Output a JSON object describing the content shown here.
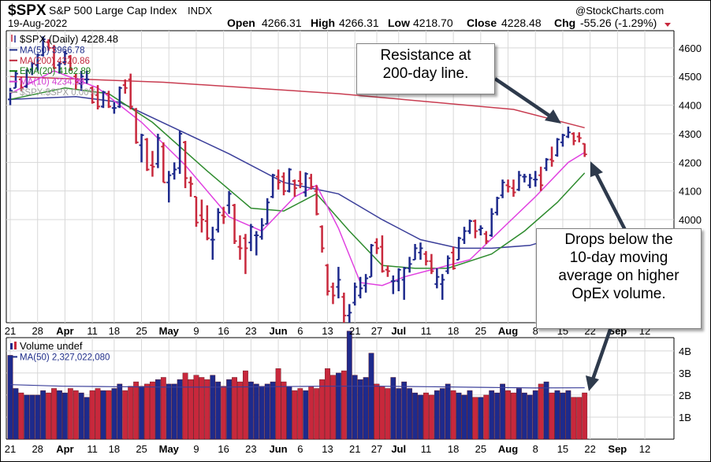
{
  "header": {
    "symbol": "$SPX",
    "name": "S&P 500 Large Cap Index",
    "exchange": "INDX",
    "date": "19-Aug-2022",
    "watermark": "@StockCharts.com",
    "open_label": "Open",
    "open": "4266.31",
    "high_label": "High",
    "high": "4266.31",
    "low_label": "Low",
    "low": "4218.70",
    "close_label": "Close",
    "close": "4228.48",
    "chg_label": "Chg",
    "chg": "-55.26 (-1.29%)"
  },
  "legend": [
    {
      "text": "$SPX (Daily) 4228.48",
      "color": "#000000",
      "swatch": "candle"
    },
    {
      "text": "MA(50) 3966.78",
      "color": "#1f2d8a",
      "swatch": "line"
    },
    {
      "text": "MA(200) 4320.86",
      "color": "#c0283c",
      "swatch": "line"
    },
    {
      "text": "EMA(20) 4162.89",
      "color": "#137a13",
      "swatch": "line"
    },
    {
      "text": "MA(10) 4234.88",
      "color": "#d03ad0",
      "swatch": "line"
    },
    {
      "text": "$SPX:$SPX 0.00%",
      "color": "#a0a0a0",
      "swatch": "line"
    }
  ],
  "volume_legend": [
    {
      "text": "Volume undef",
      "color": "#000000",
      "swatch": "bars"
    },
    {
      "text": "MA(50) 2,327,022,080",
      "color": "#1f2d8a",
      "swatch": "line"
    }
  ],
  "annotations": {
    "resistance": [
      "Resistance at",
      "200-day line."
    ],
    "drops": [
      "Drops below the",
      "10-day moving",
      "average on higher",
      "OpEx volume."
    ]
  },
  "colors": {
    "up": "#1e2a8c",
    "down": "#c8283c",
    "ma50": "#3b3f9a",
    "ma200": "#c83c50",
    "ema20": "#2e8b2e",
    "ma10": "#e040e0",
    "grid": "#d8d8d8",
    "arrow": "#2e3a4c"
  },
  "x_axis_labels": [
    {
      "text": "21",
      "bold": false
    },
    {
      "text": "28",
      "bold": false
    },
    {
      "text": "Apr",
      "bold": true
    },
    {
      "text": "11",
      "bold": false
    },
    {
      "text": "18",
      "bold": false
    },
    {
      "text": "25",
      "bold": false
    },
    {
      "text": "May",
      "bold": true
    },
    {
      "text": "9",
      "bold": false
    },
    {
      "text": "16",
      "bold": false
    },
    {
      "text": "23",
      "bold": false
    },
    {
      "text": "Jun",
      "bold": true
    },
    {
      "text": "6",
      "bold": false
    },
    {
      "text": "13",
      "bold": false
    },
    {
      "text": "21",
      "bold": false
    },
    {
      "text": "27",
      "bold": false
    },
    {
      "text": "Jul",
      "bold": true
    },
    {
      "text": "11",
      "bold": false
    },
    {
      "text": "18",
      "bold": false
    },
    {
      "text": "25",
      "bold": false
    },
    {
      "text": "Aug",
      "bold": true
    },
    {
      "text": "8",
      "bold": false
    },
    {
      "text": "15",
      "bold": false
    },
    {
      "text": "22",
      "bold": false
    },
    {
      "text": "Sep",
      "bold": true
    },
    {
      "text": "12",
      "bold": false
    }
  ],
  "chart_data": [
    {
      "type": "candlestick",
      "title": "$SPX S&P 500 Large Cap Index INDX",
      "y_ticks": [
        "4600",
        "4500",
        "4400",
        "4300",
        "4200",
        "4100",
        "4000"
      ],
      "ylim": [
        3640,
        4660
      ],
      "log_scale": false,
      "grid": true,
      "legend_position": "top-left",
      "dates": [
        "Mar 21",
        "Mar 22",
        "Mar 23",
        "Mar 24",
        "Mar 25",
        "Mar 28",
        "Mar 29",
        "Mar 30",
        "Mar 31",
        "Apr 1",
        "Apr 4",
        "Apr 5",
        "Apr 6",
        "Apr 7",
        "Apr 8",
        "Apr 11",
        "Apr 12",
        "Apr 13",
        "Apr 14",
        "Apr 18",
        "Apr 19",
        "Apr 20",
        "Apr 21",
        "Apr 22",
        "Apr 25",
        "Apr 26",
        "Apr 27",
        "Apr 28",
        "Apr 29",
        "May 2",
        "May 3",
        "May 4",
        "May 5",
        "May 6",
        "May 9",
        "May 10",
        "May 11",
        "May 12",
        "May 13",
        "May 16",
        "May 17",
        "May 18",
        "May 19",
        "May 20",
        "May 23",
        "May 24",
        "May 25",
        "May 26",
        "May 27",
        "May 31",
        "Jun 1",
        "Jun 2",
        "Jun 3",
        "Jun 6",
        "Jun 7",
        "Jun 8",
        "Jun 9",
        "Jun 10",
        "Jun 13",
        "Jun 14",
        "Jun 15",
        "Jun 16",
        "Jun 17",
        "Jun 21",
        "Jun 22",
        "Jun 23",
        "Jun 24",
        "Jun 27",
        "Jun 28",
        "Jun 29",
        "Jun 30",
        "Jul 1",
        "Jul 5",
        "Jul 6",
        "Jul 7",
        "Jul 8",
        "Jul 11",
        "Jul 12",
        "Jul 13",
        "Jul 14",
        "Jul 15",
        "Jul 18",
        "Jul 19",
        "Jul 20",
        "Jul 21",
        "Jul 22",
        "Jul 25",
        "Jul 26",
        "Jul 27",
        "Jul 28",
        "Jul 29",
        "Aug 1",
        "Aug 2",
        "Aug 3",
        "Aug 4",
        "Aug 5",
        "Aug 8",
        "Aug 9",
        "Aug 10",
        "Aug 11",
        "Aug 12",
        "Aug 15",
        "Aug 16",
        "Aug 17",
        "Aug 18",
        "Aug 19"
      ],
      "ohlc": [
        [
          4420,
          4450,
          4400,
          4460
        ],
        [
          4460,
          4510,
          4460,
          4520
        ],
        [
          4490,
          4460,
          4450,
          4500
        ],
        [
          4465,
          4520,
          4460,
          4525
        ],
        [
          4525,
          4545,
          4505,
          4550
        ],
        [
          4540,
          4575,
          4520,
          4580
        ],
        [
          4575,
          4630,
          4570,
          4640
        ],
        [
          4620,
          4600,
          4590,
          4630
        ],
        [
          4600,
          4530,
          4525,
          4610
        ],
        [
          4540,
          4545,
          4510,
          4550
        ],
        [
          4550,
          4580,
          4540,
          4590
        ],
        [
          4570,
          4525,
          4520,
          4575
        ],
        [
          4500,
          4480,
          4455,
          4510
        ],
        [
          4475,
          4500,
          4450,
          4520
        ],
        [
          4490,
          4490,
          4475,
          4520
        ],
        [
          4460,
          4410,
          4405,
          4465
        ],
        [
          4435,
          4395,
          4385,
          4470
        ],
        [
          4395,
          4445,
          4390,
          4450
        ],
        [
          4440,
          4395,
          4390,
          4450
        ],
        [
          4390,
          4390,
          4370,
          4410
        ],
        [
          4395,
          4460,
          4390,
          4465
        ],
        [
          4470,
          4460,
          4440,
          4490
        ],
        [
          4490,
          4395,
          4385,
          4510
        ],
        [
          4385,
          4270,
          4265,
          4390
        ],
        [
          4260,
          4295,
          4200,
          4300
        ],
        [
          4280,
          4175,
          4170,
          4285
        ],
        [
          4190,
          4185,
          4150,
          4240
        ],
        [
          4195,
          4285,
          4180,
          4300
        ],
        [
          4255,
          4130,
          4130,
          4270
        ],
        [
          4130,
          4155,
          4060,
          4170
        ],
        [
          4160,
          4175,
          4140,
          4200
        ],
        [
          4180,
          4300,
          4160,
          4310
        ],
        [
          4270,
          4145,
          4110,
          4275
        ],
        [
          4130,
          4125,
          4080,
          4150
        ],
        [
          4080,
          3990,
          3975,
          4080
        ],
        [
          4015,
          4000,
          3955,
          4070
        ],
        [
          3995,
          3935,
          3928,
          4050
        ],
        [
          3930,
          3930,
          3860,
          3975
        ],
        [
          3965,
          4025,
          3955,
          4040
        ],
        [
          4015,
          4010,
          3985,
          4045
        ],
        [
          4050,
          4090,
          4020,
          4100
        ],
        [
          4050,
          3925,
          3915,
          4055
        ],
        [
          3905,
          3900,
          3860,
          3945
        ],
        [
          3935,
          3900,
          3810,
          3950
        ],
        [
          3920,
          3975,
          3890,
          3985
        ],
        [
          3945,
          3945,
          3875,
          3960
        ],
        [
          3940,
          3980,
          3930,
          4005
        ],
        [
          3985,
          4060,
          3985,
          4075
        ],
        [
          4080,
          4155,
          4075,
          4160
        ],
        [
          4150,
          4130,
          4105,
          4175
        ],
        [
          4150,
          4100,
          4085,
          4165
        ],
        [
          4100,
          4175,
          4095,
          4180
        ],
        [
          4135,
          4110,
          4080,
          4140
        ],
        [
          4135,
          4125,
          4110,
          4170
        ],
        [
          4095,
          4160,
          4080,
          4165
        ],
        [
          4145,
          4115,
          4105,
          4160
        ],
        [
          4100,
          4020,
          4015,
          4120
        ],
        [
          3975,
          3900,
          3885,
          3980
        ],
        [
          3840,
          3750,
          3735,
          3845
        ],
        [
          3765,
          3735,
          3705,
          3780
        ],
        [
          3765,
          3790,
          3725,
          3835
        ],
        [
          3730,
          3665,
          3640,
          3745
        ],
        [
          3665,
          3675,
          3640,
          3705
        ],
        [
          3710,
          3765,
          3700,
          3780
        ],
        [
          3735,
          3760,
          3725,
          3800
        ],
        [
          3770,
          3795,
          3745,
          3810
        ],
        [
          3800,
          3910,
          3800,
          3915
        ],
        [
          3920,
          3900,
          3880,
          3935
        ],
        [
          3905,
          3820,
          3815,
          3945
        ],
        [
          3825,
          3820,
          3800,
          3840
        ],
        [
          3785,
          3785,
          3740,
          3805
        ],
        [
          3785,
          3825,
          3750,
          3830
        ],
        [
          3790,
          3830,
          3720,
          3835
        ],
        [
          3830,
          3845,
          3815,
          3870
        ],
        [
          3860,
          3900,
          3860,
          3915
        ],
        [
          3885,
          3900,
          3860,
          3920
        ],
        [
          3880,
          3855,
          3840,
          3890
        ],
        [
          3855,
          3820,
          3810,
          3880
        ],
        [
          3775,
          3800,
          3760,
          3830
        ],
        [
          3775,
          3790,
          3720,
          3810
        ],
        [
          3820,
          3865,
          3810,
          3875
        ],
        [
          3885,
          3830,
          3825,
          3905
        ],
        [
          3860,
          3935,
          3860,
          3940
        ],
        [
          3930,
          3960,
          3915,
          3975
        ],
        [
          3960,
          3995,
          3950,
          4000
        ],
        [
          3995,
          3960,
          3935,
          4000
        ],
        [
          3965,
          3970,
          3945,
          3980
        ],
        [
          3950,
          3925,
          3915,
          3960
        ],
        [
          3945,
          4020,
          3940,
          4040
        ],
        [
          4025,
          4075,
          4015,
          4080
        ],
        [
          4085,
          4130,
          4075,
          4140
        ],
        [
          4120,
          4115,
          4095,
          4140
        ],
        [
          4110,
          4095,
          4080,
          4140
        ],
        [
          4105,
          4155,
          4100,
          4170
        ],
        [
          4150,
          4150,
          4130,
          4160
        ],
        [
          4120,
          4145,
          4110,
          4160
        ],
        [
          4140,
          4140,
          4115,
          4170
        ],
        [
          4155,
          4120,
          4100,
          4185
        ],
        [
          4180,
          4210,
          4170,
          4215
        ],
        [
          4210,
          4205,
          4185,
          4255
        ],
        [
          4225,
          4280,
          4220,
          4285
        ],
        [
          4270,
          4295,
          4255,
          4300
        ],
        [
          4290,
          4305,
          4285,
          4325
        ],
        [
          4300,
          4275,
          4260,
          4305
        ],
        [
          4290,
          4285,
          4270,
          4305
        ],
        [
          4265,
          4228,
          4219,
          4266
        ]
      ],
      "ma200_points": [
        [
          0,
          4500
        ],
        [
          28,
          4480
        ],
        [
          60,
          4440
        ],
        [
          92,
          4385
        ],
        [
          105,
          4321
        ]
      ],
      "ma50_points": [
        [
          0,
          4420
        ],
        [
          12,
          4430
        ],
        [
          20,
          4410
        ],
        [
          30,
          4320
        ],
        [
          40,
          4230
        ],
        [
          50,
          4130
        ],
        [
          60,
          4090
        ],
        [
          68,
          4000
        ],
        [
          75,
          3930
        ],
        [
          82,
          3900
        ],
        [
          88,
          3900
        ],
        [
          95,
          3910
        ],
        [
          105,
          3967
        ]
      ],
      "ema20_points": [
        [
          0,
          4420
        ],
        [
          10,
          4460
        ],
        [
          18,
          4440
        ],
        [
          26,
          4340
        ],
        [
          36,
          4170
        ],
        [
          44,
          4040
        ],
        [
          50,
          4030
        ],
        [
          56,
          4090
        ],
        [
          62,
          3960
        ],
        [
          68,
          3840
        ],
        [
          74,
          3830
        ],
        [
          80,
          3830
        ],
        [
          88,
          3880
        ],
        [
          94,
          3960
        ],
        [
          100,
          4060
        ],
        [
          105,
          4163
        ]
      ],
      "ma10_points": [
        [
          0,
          4440
        ],
        [
          8,
          4520
        ],
        [
          16,
          4460
        ],
        [
          24,
          4340
        ],
        [
          32,
          4190
        ],
        [
          40,
          4010
        ],
        [
          46,
          3960
        ],
        [
          52,
          4080
        ],
        [
          56,
          4120
        ],
        [
          60,
          3970
        ],
        [
          64,
          3780
        ],
        [
          68,
          3770
        ],
        [
          72,
          3800
        ],
        [
          78,
          3830
        ],
        [
          84,
          3860
        ],
        [
          90,
          3970
        ],
        [
          96,
          4080
        ],
        [
          102,
          4200
        ],
        [
          105,
          4235
        ]
      ]
    },
    {
      "type": "bar",
      "title": "Volume undef",
      "y_ticks": [
        "4B",
        "3B",
        "2B",
        "1B"
      ],
      "ylim": [
        0,
        4600000000
      ],
      "grid": true,
      "ma50_label": "MA(50) 2,327,022,080",
      "values_billions": [
        3.8,
        2.3,
        2.1,
        2.0,
        2.0,
        2.0,
        2.2,
        2.1,
        2.3,
        2.2,
        2.1,
        2.3,
        2.2,
        2.1,
        1.9,
        2.2,
        2.3,
        2.2,
        2.2,
        2.3,
        2.5,
        2.2,
        2.4,
        2.6,
        2.4,
        2.5,
        2.6,
        2.7,
        2.8,
        2.5,
        2.5,
        2.7,
        3.0,
        2.7,
        2.9,
        2.8,
        2.7,
        2.9,
        2.6,
        2.4,
        2.7,
        2.8,
        2.6,
        3.1,
        2.6,
        2.5,
        2.4,
        2.5,
        2.6,
        3.2,
        2.6,
        2.4,
        2.2,
        2.3,
        2.2,
        2.4,
        2.3,
        2.7,
        3.2,
        2.9,
        3.0,
        3.1,
        4.9,
        2.9,
        2.7,
        2.8,
        3.9,
        2.5,
        2.4,
        2.3,
        2.8,
        2.3,
        2.6,
        2.3,
        2.1,
        2.0,
        2.1,
        2.0,
        2.2,
        2.3,
        2.5,
        2.2,
        2.1,
        2.0,
        2.2,
        1.9,
        1.9,
        2.0,
        2.2,
        2.1,
        2.5,
        2.2,
        2.1,
        2.3,
        2.1,
        2.0,
        2.2,
        2.5,
        2.6,
        2.1,
        2.2,
        2.1,
        2.2,
        1.9,
        1.9,
        2.1
      ],
      "ma50_billions": [
        2.47,
        2.4,
        2.38,
        2.36,
        2.36,
        2.38,
        2.4,
        2.4,
        2.38,
        2.35,
        2.32,
        2.33
      ]
    }
  ]
}
